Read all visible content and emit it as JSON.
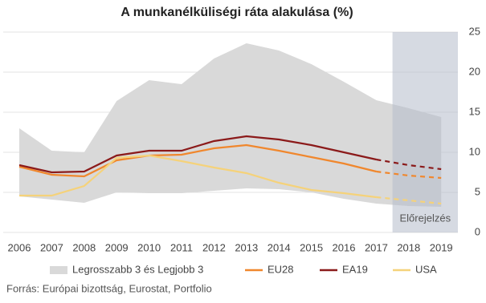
{
  "chart_data": {
    "type": "line",
    "title": "A munkanélküliségi ráta alakulása (%)",
    "source": "Forrás: Európai bizottság, Eurostat, Portfolio",
    "categories": [
      "2006",
      "2007",
      "2008",
      "2009",
      "2010",
      "2011",
      "2012",
      "2013",
      "2014",
      "2015",
      "2016",
      "2017",
      "2018",
      "2019"
    ],
    "range": {
      "name": "Legrosszabb 3 és Legjobb 3",
      "color": "#d9d9d9",
      "high": [
        13,
        10.2,
        10,
        16.4,
        19,
        18.5,
        21.7,
        23.6,
        22.7,
        21,
        18.8,
        16.5,
        15.5,
        14.4
      ],
      "low": [
        4.5,
        4.1,
        3.7,
        5,
        4.9,
        4.9,
        5.2,
        5.5,
        5.4,
        5,
        4.2,
        3.6,
        3.3,
        3.2
      ]
    },
    "series": [
      {
        "name": "EU28",
        "color": "#f0872d",
        "values": [
          8.2,
          7.2,
          7.0,
          9.0,
          9.6,
          9.7,
          10.5,
          10.9,
          10.2,
          9.4,
          8.6,
          7.6,
          7.1,
          6.8
        ]
      },
      {
        "name": "EA19",
        "color": "#8b1a1a",
        "values": [
          8.4,
          7.5,
          7.6,
          9.6,
          10.2,
          10.2,
          11.4,
          12.0,
          11.6,
          10.9,
          10.0,
          9.1,
          8.4,
          7.9
        ]
      },
      {
        "name": "USA",
        "color": "#f5d27a",
        "values": [
          4.6,
          4.6,
          5.8,
          9.3,
          9.6,
          8.9,
          8.1,
          7.4,
          6.2,
          5.3,
          4.9,
          4.4,
          4.0,
          3.6
        ]
      }
    ],
    "forecast": {
      "label": "Előrejelzés",
      "from": "2018",
      "color": "#b4bccb"
    },
    "ylim": [
      0,
      25
    ],
    "yticks": [
      0,
      5,
      10,
      15,
      20,
      25
    ],
    "grid": true
  }
}
